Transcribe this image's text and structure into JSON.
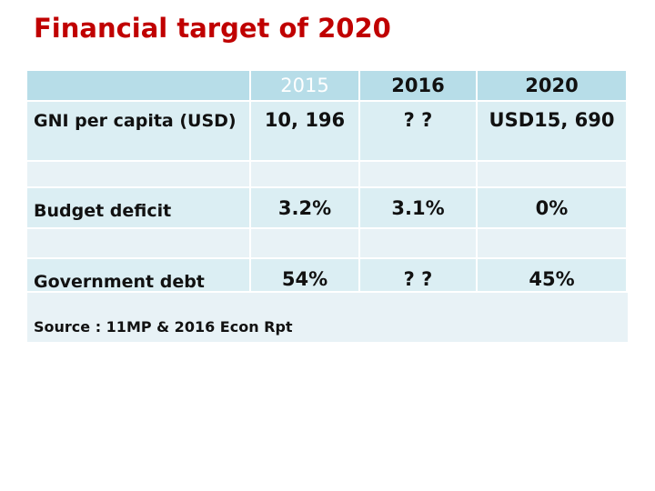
{
  "title": "Financial target of 2020",
  "table": {
    "header": [
      "2015",
      "2016",
      "2020"
    ],
    "rows": [
      {
        "label": "GNI per capita (USD)",
        "cells": [
          "10, 196",
          "? ?",
          "USD15, 690"
        ]
      },
      {
        "label": "Budget deficit",
        "cells": [
          "3.2%",
          "3.1%",
          "0%"
        ]
      },
      {
        "label": "Government debt",
        "cells": [
          "54%",
          "? ?",
          "45%"
        ]
      }
    ],
    "source": "Source : 11MP & 2016 Econ Rpt"
  }
}
